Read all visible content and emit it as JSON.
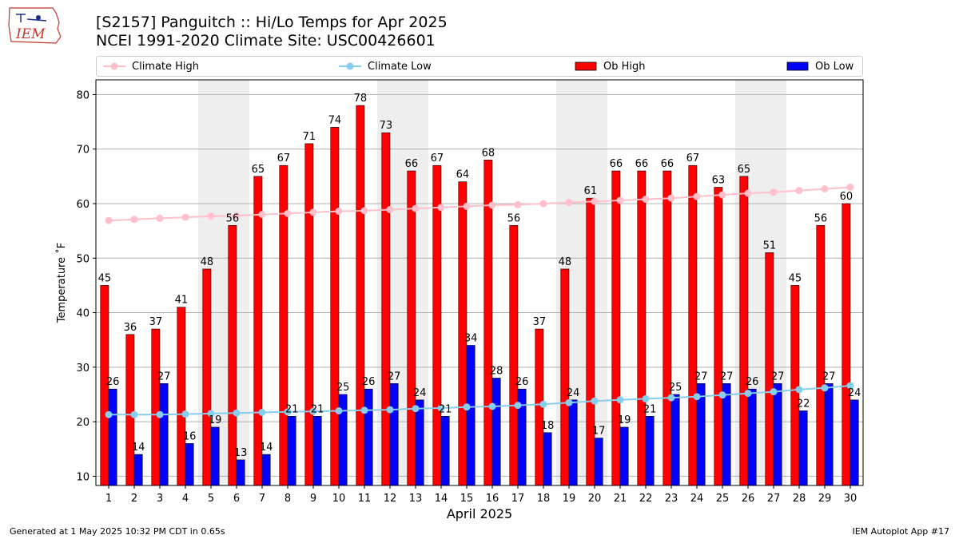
{
  "header": {
    "title_line1": "[S2157] Panguitch :: Hi/Lo Temps for Apr 2025",
    "title_line2": "NCEI 1991-2020 Climate Site: USC00426601",
    "logo_text": "IEM"
  },
  "colors": {
    "ob_high": "#ff0000",
    "ob_low": "#0000ff",
    "climate_high": "#ffc0cb",
    "climate_low": "#87ceeb",
    "weekend_shade": "#eeeeee",
    "grid": "#b0b0b0"
  },
  "chart_data": {
    "type": "bar",
    "xlabel": "April 2025",
    "ylabel": "Temperature ˚F",
    "ylim": [
      8.3,
      82.7
    ],
    "yticks": [
      10,
      20,
      30,
      40,
      50,
      60,
      70,
      80
    ],
    "x": [
      1,
      2,
      3,
      4,
      5,
      6,
      7,
      8,
      9,
      10,
      11,
      12,
      13,
      14,
      15,
      16,
      17,
      18,
      19,
      20,
      21,
      22,
      23,
      24,
      25,
      26,
      27,
      28,
      29,
      30
    ],
    "shaded_days": [
      5,
      6,
      12,
      13,
      19,
      20,
      26,
      27
    ],
    "grid": "horizontal",
    "legend_position": "top",
    "series": [
      {
        "name": "Climate High",
        "kind": "line",
        "values": [
          56.9,
          57.1,
          57.3,
          57.5,
          57.7,
          57.8,
          58.0,
          58.2,
          58.4,
          58.6,
          58.7,
          58.9,
          59.1,
          59.3,
          59.5,
          59.7,
          59.8,
          60.0,
          60.2,
          60.4,
          60.6,
          60.8,
          61.0,
          61.3,
          61.6,
          61.9,
          62.1,
          62.4,
          62.7,
          63.0
        ]
      },
      {
        "name": "Climate Low",
        "kind": "line",
        "values": [
          21.3,
          21.3,
          21.3,
          21.4,
          21.5,
          21.6,
          21.7,
          21.8,
          21.9,
          22.0,
          22.1,
          22.2,
          22.4,
          22.5,
          22.7,
          22.8,
          23.0,
          23.2,
          23.5,
          23.8,
          24.0,
          24.2,
          24.4,
          24.6,
          24.9,
          25.2,
          25.5,
          25.9,
          26.2,
          26.6
        ]
      },
      {
        "name": "Ob High",
        "kind": "bar",
        "values": [
          45,
          36,
          37,
          41,
          48,
          56,
          65,
          67,
          71,
          74,
          78,
          73,
          66,
          67,
          64,
          68,
          56,
          37,
          48,
          61,
          66,
          66,
          66,
          67,
          63,
          65,
          51,
          45,
          56,
          60
        ]
      },
      {
        "name": "Ob Low",
        "kind": "bar",
        "values": [
          26,
          14,
          27,
          16,
          19,
          13,
          14,
          21,
          21,
          25,
          26,
          27,
          24,
          21,
          34,
          28,
          26,
          18,
          24,
          17,
          19,
          21,
          25,
          27,
          27,
          26,
          27,
          22,
          27,
          24
        ]
      }
    ]
  },
  "footer": {
    "left": "Generated at 1 May 2025 10:32 PM CDT in 0.65s",
    "right": "IEM Autoplot App #17"
  }
}
